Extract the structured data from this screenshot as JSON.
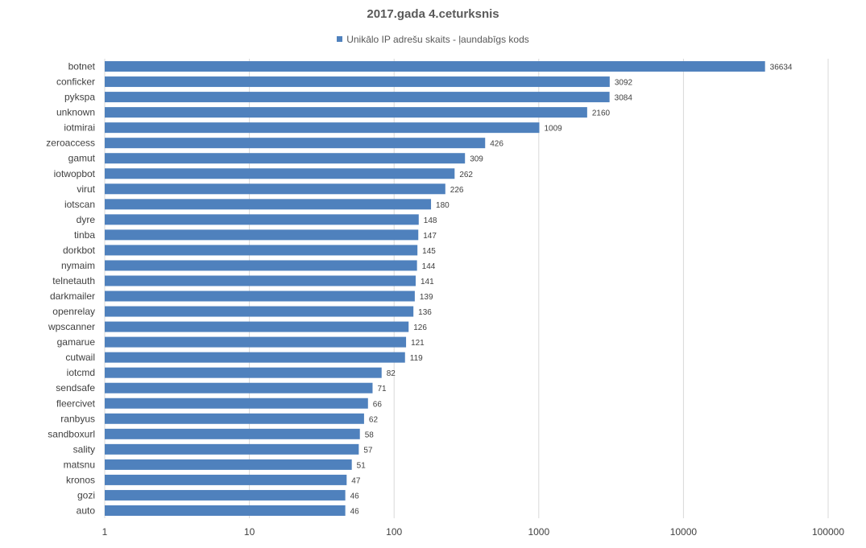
{
  "chart_data": {
    "type": "bar",
    "orientation": "horizontal",
    "title": "2017.gada 4.ceturksnis",
    "legend": {
      "position": "top",
      "entries": [
        "Unikālo IP adrešu skaits -  ļaundabīgs kods"
      ]
    },
    "series": [
      {
        "name": "Unikālo IP adrešu skaits -  ļaundabīgs kods",
        "color": "#4f81bd",
        "values": [
          36634,
          3092,
          3084,
          2160,
          1009,
          426,
          309,
          262,
          226,
          180,
          148,
          147,
          145,
          144,
          141,
          139,
          136,
          126,
          121,
          119,
          82,
          71,
          66,
          62,
          58,
          57,
          51,
          47,
          46,
          46
        ]
      }
    ],
    "categories": [
      "botnet",
      "conficker",
      "pykspa",
      "unknown",
      "iotmirai",
      "zeroaccess",
      "gamut",
      "iotwopbot",
      "virut",
      "iotscan",
      "dyre",
      "tinba",
      "dorkbot",
      "nymaim",
      "telnetauth",
      "darkmailer",
      "openrelay",
      "wpscanner",
      "gamarue",
      "cutwail",
      "iotcmd",
      "sendsafe",
      "fleercivet",
      "ranbyus",
      "sandboxurl",
      "sality",
      "matsnu",
      "kronos",
      "gozi",
      "auto"
    ],
    "x_scale": "log",
    "xlim": [
      1,
      100000
    ],
    "x_ticks": [
      "1",
      "10",
      "100",
      "1000",
      "10000",
      "100000"
    ],
    "grid": true,
    "data_labels": true
  }
}
